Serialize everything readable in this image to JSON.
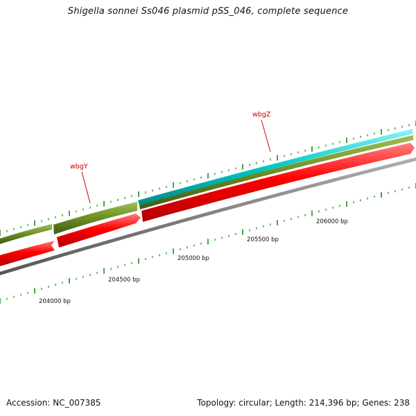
{
  "title": "Shigella sonnei Ss046 plasmid pSS_046, complete sequence",
  "footer": {
    "accession": "Accession: NC_007385",
    "summary": "Topology: circular; Length: 214,396 bp; Genes: 238"
  },
  "colors": {
    "forward_gene": "#6b8e23",
    "forward_gene_highlight": "#00c8c8",
    "reverse_gene": "#ff0000",
    "backbone": "#808080",
    "tick": "#1a8a1a",
    "gene_label": "#cc0000",
    "scale_label": "#111111"
  },
  "scale_labels": [
    {
      "bp": 204000,
      "text": "204000 bp"
    },
    {
      "bp": 204500,
      "text": "204500 bp"
    },
    {
      "bp": 205000,
      "text": "205000 bp"
    },
    {
      "bp": 205500,
      "text": "205500 bp"
    },
    {
      "bp": 206000,
      "text": "206000 bp"
    }
  ],
  "gene_labels": [
    {
      "name": "wbgY",
      "text": "wbgY"
    },
    {
      "name": "wbgZ",
      "text": "wbgZ"
    }
  ]
}
